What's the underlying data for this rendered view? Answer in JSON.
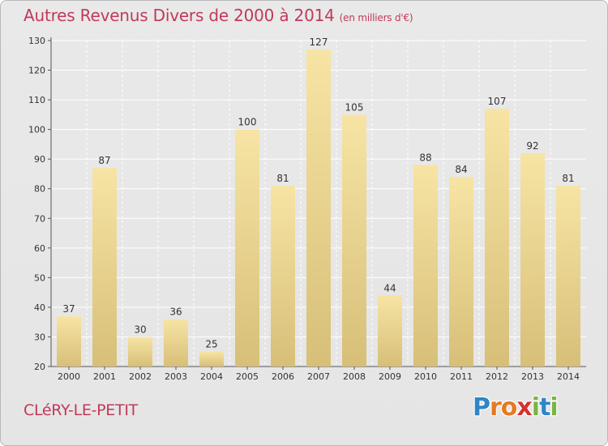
{
  "chart_data": {
    "type": "bar",
    "title": "Autres Revenus Divers de 2000 à 2014",
    "unit_label": "(en milliers d'€)",
    "categories": [
      "2000",
      "2001",
      "2002",
      "2003",
      "2004",
      "2005",
      "2006",
      "2007",
      "2008",
      "2009",
      "2010",
      "2011",
      "2012",
      "2013",
      "2014"
    ],
    "values": [
      37,
      87,
      30,
      36,
      25,
      100,
      81,
      127,
      105,
      44,
      88,
      84,
      107,
      92,
      81
    ],
    "ylim": [
      20,
      130
    ],
    "yticks": [
      20,
      30,
      40,
      50,
      60,
      70,
      80,
      90,
      100,
      110,
      120,
      130
    ],
    "grid": true,
    "bar_color_light": "#f7e4a4",
    "bar_color_dark": "#d7bf78"
  },
  "commune_name": "CLéRY-LE-PETIT",
  "logo": {
    "letters": [
      {
        "ch": "P",
        "color": "#2f86c6"
      },
      {
        "ch": "r",
        "color": "#e67a21"
      },
      {
        "ch": "o",
        "color": "#e67a21"
      },
      {
        "ch": "x",
        "color": "#d6332f"
      },
      {
        "ch": "i",
        "color": "#7cb342"
      },
      {
        "ch": "t",
        "color": "#2f86c6"
      },
      {
        "ch": "i",
        "color": "#7cb342"
      }
    ]
  },
  "colors": {
    "title": "#c2395a",
    "background": "#e8e8e8",
    "grid": "#ffffff",
    "axis_text": "#333333"
  }
}
